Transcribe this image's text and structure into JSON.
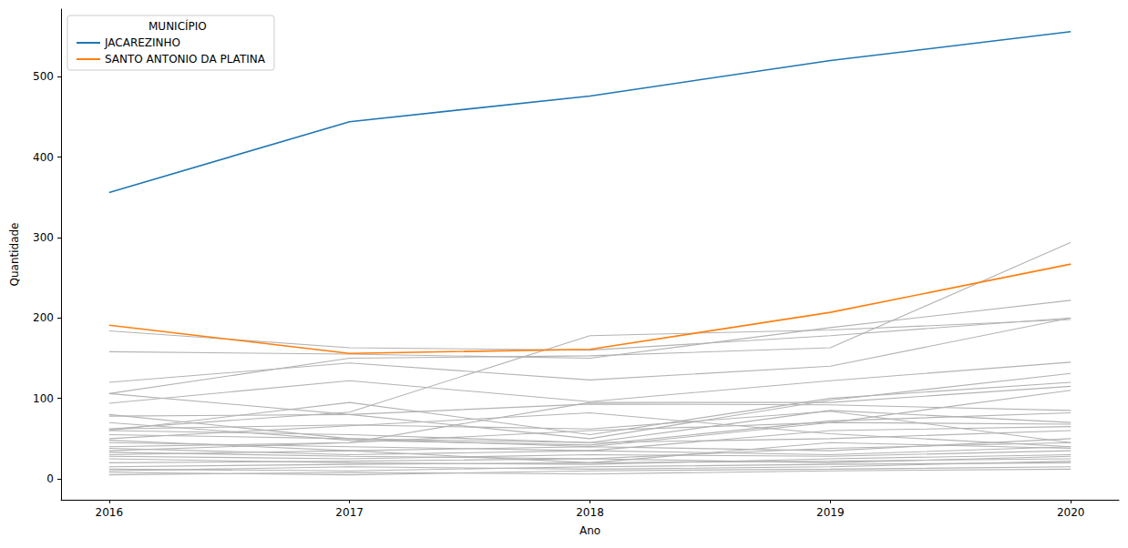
{
  "chart_data": {
    "type": "line",
    "x_label": "Ano",
    "y_label": "Quantidade",
    "legend_title": "MUNICÍPIO",
    "legend": "upper left",
    "grid": false,
    "x": [
      2016,
      2017,
      2018,
      2019,
      2020
    ],
    "xlim": [
      2015.8,
      2020.2
    ],
    "xticks": [
      2016,
      2017,
      2018,
      2019,
      2020
    ],
    "ylim": [
      -26,
      584
    ],
    "yticks": [
      0,
      100,
      200,
      300,
      400,
      500
    ],
    "series": [
      {
        "name": "JACAREZINHO",
        "color": "#1f77b4",
        "values": [
          356,
          444,
          476,
          520,
          556
        ]
      },
      {
        "name": "SANTO ANTONIO DA PLATINA",
        "color": "#ff7f0e",
        "values": [
          191,
          156,
          161,
          207,
          267
        ]
      },
      {
        "color": "#b3b3b3",
        "values": [
          184,
          163,
          160,
          178,
          200
        ]
      },
      {
        "color": "#b3b3b3",
        "values": [
          158,
          155,
          150,
          188,
          222
        ]
      },
      {
        "color": "#b3b3b3",
        "values": [
          106,
          150,
          153,
          163,
          294
        ]
      },
      {
        "color": "#b3b3b3",
        "values": [
          120,
          144,
          123,
          140,
          200
        ]
      },
      {
        "color": "#b3b3b3",
        "values": [
          94,
          122,
          96,
          122,
          145
        ]
      },
      {
        "color": "#b3b3b3",
        "values": [
          62,
          83,
          178,
          185,
          198
        ]
      },
      {
        "color": "#b3b3b3",
        "values": [
          106,
          80,
          50,
          98,
          131
        ]
      },
      {
        "color": "#b3b3b3",
        "values": [
          78,
          80,
          93,
          92,
          85
        ]
      },
      {
        "color": "#b3b3b3",
        "values": [
          60,
          95,
          55,
          100,
          120
        ]
      },
      {
        "color": "#b3b3b3",
        "values": [
          50,
          66,
          82,
          56,
          40
        ]
      },
      {
        "color": "#b3b3b3",
        "values": [
          62,
          67,
          62,
          84,
          45
        ]
      },
      {
        "color": "#b3b3b3",
        "values": [
          40,
          45,
          60,
          70,
          110
        ]
      },
      {
        "color": "#b3b3b3",
        "values": [
          35,
          45,
          95,
          95,
          115
        ]
      },
      {
        "color": "#b3b3b3",
        "values": [
          80,
          50,
          40,
          70,
          68
        ]
      },
      {
        "color": "#b3b3b3",
        "values": [
          55,
          50,
          45,
          50,
          60
        ]
      },
      {
        "color": "#b3b3b3",
        "values": [
          48,
          35,
          40,
          35,
          50
        ]
      },
      {
        "color": "#b3b3b3",
        "values": [
          38,
          30,
          35,
          30,
          40
        ]
      },
      {
        "color": "#b3b3b3",
        "values": [
          33,
          28,
          25,
          38,
          45
        ]
      },
      {
        "color": "#b3b3b3",
        "values": [
          30,
          35,
          20,
          45,
          38
        ]
      },
      {
        "color": "#b3b3b3",
        "values": [
          25,
          20,
          18,
          25,
          30
        ]
      },
      {
        "color": "#b3b3b3",
        "values": [
          20,
          22,
          25,
          20,
          28
        ]
      },
      {
        "color": "#b3b3b3",
        "values": [
          15,
          18,
          20,
          22,
          25
        ]
      },
      {
        "color": "#b3b3b3",
        "values": [
          12,
          10,
          15,
          18,
          20
        ]
      },
      {
        "color": "#b3b3b3",
        "values": [
          8,
          5,
          10,
          12,
          15
        ]
      },
      {
        "color": "#b3b3b3",
        "values": [
          5,
          8,
          6,
          10,
          12
        ]
      },
      {
        "color": "#b3b3b3",
        "values": [
          10,
          15,
          12,
          15,
          22
        ]
      },
      {
        "color": "#b3b3b3",
        "values": [
          28,
          25,
          30,
          28,
          35
        ]
      },
      {
        "color": "#b3b3b3",
        "values": [
          45,
          40,
          35,
          60,
          65
        ]
      },
      {
        "color": "#b3b3b3",
        "values": [
          60,
          55,
          45,
          85,
          70
        ]
      },
      {
        "color": "#b3b3b3",
        "values": [
          70,
          48,
          42,
          72,
          82
        ]
      }
    ]
  }
}
